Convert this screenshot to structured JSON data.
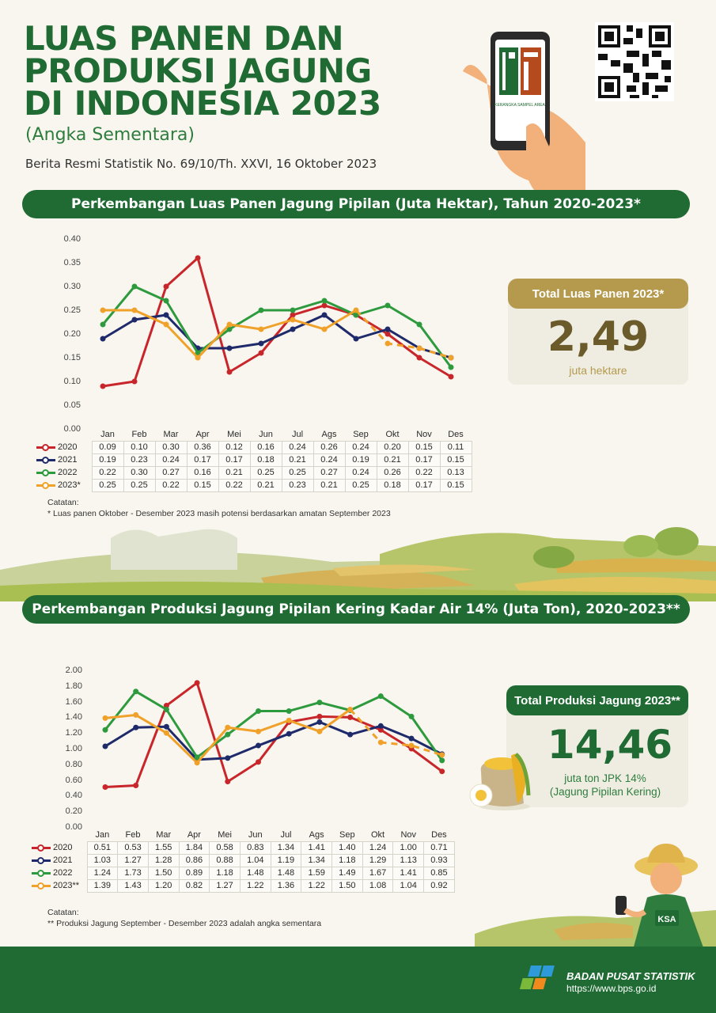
{
  "header": {
    "title_line1": "LUAS PANEN DAN",
    "title_line2": "PRODUKSI JAGUNG",
    "title_line3": "DI INDONESIA 2023",
    "subtitle": "(Angka Sementara)",
    "brs": "Berita Resmi Statistik No. 69/10/Th. XXVI, 16 Oktober 2023",
    "phone_logo_text": "KERANGKA SAMPEL AREA"
  },
  "section1": {
    "banner": "Perkembangan Luas Panen Jagung Pipilan (Juta Hektar), Tahun 2020-2023*",
    "note_title": "Catatan:",
    "note_text": "* Luas panen Oktober - Desember 2023 masih potensi berdasarkan amatan September 2023",
    "card_title": "Total Luas Panen 2023*",
    "card_value": "2,49",
    "card_unit": "juta hektare"
  },
  "section2": {
    "banner": "Perkembangan Produksi Jagung Pipilan Kering Kadar Air 14% (Juta Ton), 2020-2023**",
    "note_title": "Catatan:",
    "note_text": "** Produksi Jagung September - Desember 2023 adalah angka sementara",
    "card_title": "Total Produksi Jagung 2023**",
    "card_value": "14,46",
    "card_unit1": "juta ton JPK 14%",
    "card_unit2": "(Jagung Pipilan Kering)",
    "farmer_badge": "KSA"
  },
  "footer": {
    "org": "BADAN PUSAT STATISTIK",
    "url": "https://www.bps.go.id"
  },
  "colors": {
    "green_dark": "#1f6b33",
    "gold": "#b59a4e",
    "s2020": "#c8262a",
    "s2021": "#1f2a6b",
    "s2022": "#2e9a3e",
    "s2023": "#f0a12a"
  },
  "chart_data": [
    {
      "type": "line",
      "title": "Perkembangan Luas Panen Jagung Pipilan (Juta Hektar), Tahun 2020-2023*",
      "categories": [
        "Jan",
        "Feb",
        "Mar",
        "Apr",
        "Mei",
        "Jun",
        "Jul",
        "Ags",
        "Sep",
        "Okt",
        "Nov",
        "Des"
      ],
      "ylim": [
        0,
        0.4
      ],
      "yticks": [
        "0.00",
        "0.05",
        "0.10",
        "0.15",
        "0.20",
        "0.25",
        "0.30",
        "0.35",
        "0.40"
      ],
      "series": [
        {
          "name": "2020",
          "color": "#c8262a",
          "values": [
            0.09,
            0.1,
            0.3,
            0.36,
            0.12,
            0.16,
            0.24,
            0.26,
            0.24,
            0.2,
            0.15,
            0.11
          ],
          "labels": [
            "0.09",
            "0.10",
            "0.30",
            "0.36",
            "0.12",
            "0.16",
            "0.24",
            "0.26",
            "0.24",
            "0.20",
            "0.15",
            "0.11"
          ]
        },
        {
          "name": "2021",
          "color": "#1f2a6b",
          "values": [
            0.19,
            0.23,
            0.24,
            0.17,
            0.17,
            0.18,
            0.21,
            0.24,
            0.19,
            0.21,
            0.17,
            0.15
          ],
          "labels": [
            "0.19",
            "0.23",
            "0.24",
            "0.17",
            "0.17",
            "0.18",
            "0.21",
            "0.24",
            "0.19",
            "0.21",
            "0.17",
            "0.15"
          ]
        },
        {
          "name": "2022",
          "color": "#2e9a3e",
          "values": [
            0.22,
            0.3,
            0.27,
            0.16,
            0.21,
            0.25,
            0.25,
            0.27,
            0.24,
            0.26,
            0.22,
            0.13
          ],
          "labels": [
            "0.22",
            "0.30",
            "0.27",
            "0.16",
            "0.21",
            "0.25",
            "0.25",
            "0.27",
            "0.24",
            "0.26",
            "0.22",
            "0.13"
          ]
        },
        {
          "name": "2023*",
          "color": "#f0a12a",
          "values": [
            0.25,
            0.25,
            0.22,
            0.15,
            0.22,
            0.21,
            0.23,
            0.21,
            0.25,
            0.18,
            0.17,
            0.15
          ],
          "labels": [
            "0.25",
            "0.25",
            "0.22",
            "0.15",
            "0.22",
            "0.21",
            "0.23",
            "0.21",
            "0.25",
            "0.18",
            "0.17",
            "0.15"
          ],
          "dashed_from_index": 8
        }
      ]
    },
    {
      "type": "line",
      "title": "Perkembangan Produksi Jagung Pipilan Kering Kadar Air 14% (Juta Ton), 2020-2023**",
      "categories": [
        "Jan",
        "Feb",
        "Mar",
        "Apr",
        "Mei",
        "Jun",
        "Jul",
        "Ags",
        "Sep",
        "Okt",
        "Nov",
        "Des"
      ],
      "ylim": [
        0,
        2.0
      ],
      "yticks": [
        "0.00",
        "0.20",
        "0.40",
        "0.60",
        "0.80",
        "1.00",
        "1.20",
        "1.40",
        "1.60",
        "1.80",
        "2.00"
      ],
      "series": [
        {
          "name": "2020",
          "color": "#c8262a",
          "values": [
            0.51,
            0.53,
            1.55,
            1.84,
            0.58,
            0.83,
            1.34,
            1.41,
            1.4,
            1.24,
            1.0,
            0.71
          ],
          "labels": [
            "0.51",
            "0.53",
            "1.55",
            "1.84",
            "0.58",
            "0.83",
            "1.34",
            "1.41",
            "1.40",
            "1.24",
            "1.00",
            "0.71"
          ]
        },
        {
          "name": "2021",
          "color": "#1f2a6b",
          "values": [
            1.03,
            1.27,
            1.28,
            0.86,
            0.88,
            1.04,
            1.19,
            1.34,
            1.18,
            1.29,
            1.13,
            0.93
          ],
          "labels": [
            "1.03",
            "1.27",
            "1.28",
            "0.86",
            "0.88",
            "1.04",
            "1.19",
            "1.34",
            "1.18",
            "1.29",
            "1.13",
            "0.93"
          ]
        },
        {
          "name": "2022",
          "color": "#2e9a3e",
          "values": [
            1.24,
            1.73,
            1.5,
            0.89,
            1.18,
            1.48,
            1.48,
            1.59,
            1.49,
            1.67,
            1.41,
            0.85
          ],
          "labels": [
            "1.24",
            "1.73",
            "1.50",
            "0.89",
            "1.18",
            "1.48",
            "1.48",
            "1.59",
            "1.49",
            "1.67",
            "1.41",
            "0.85"
          ]
        },
        {
          "name": "2023**",
          "color": "#f0a12a",
          "values": [
            1.39,
            1.43,
            1.2,
            0.82,
            1.27,
            1.22,
            1.36,
            1.22,
            1.5,
            1.08,
            1.04,
            0.92
          ],
          "labels": [
            "1.39",
            "1.43",
            "1.20",
            "0.82",
            "1.27",
            "1.22",
            "1.36",
            "1.22",
            "1.50",
            "1.08",
            "1.04",
            "0.92"
          ],
          "dashed_from_index": 8
        }
      ]
    }
  ]
}
